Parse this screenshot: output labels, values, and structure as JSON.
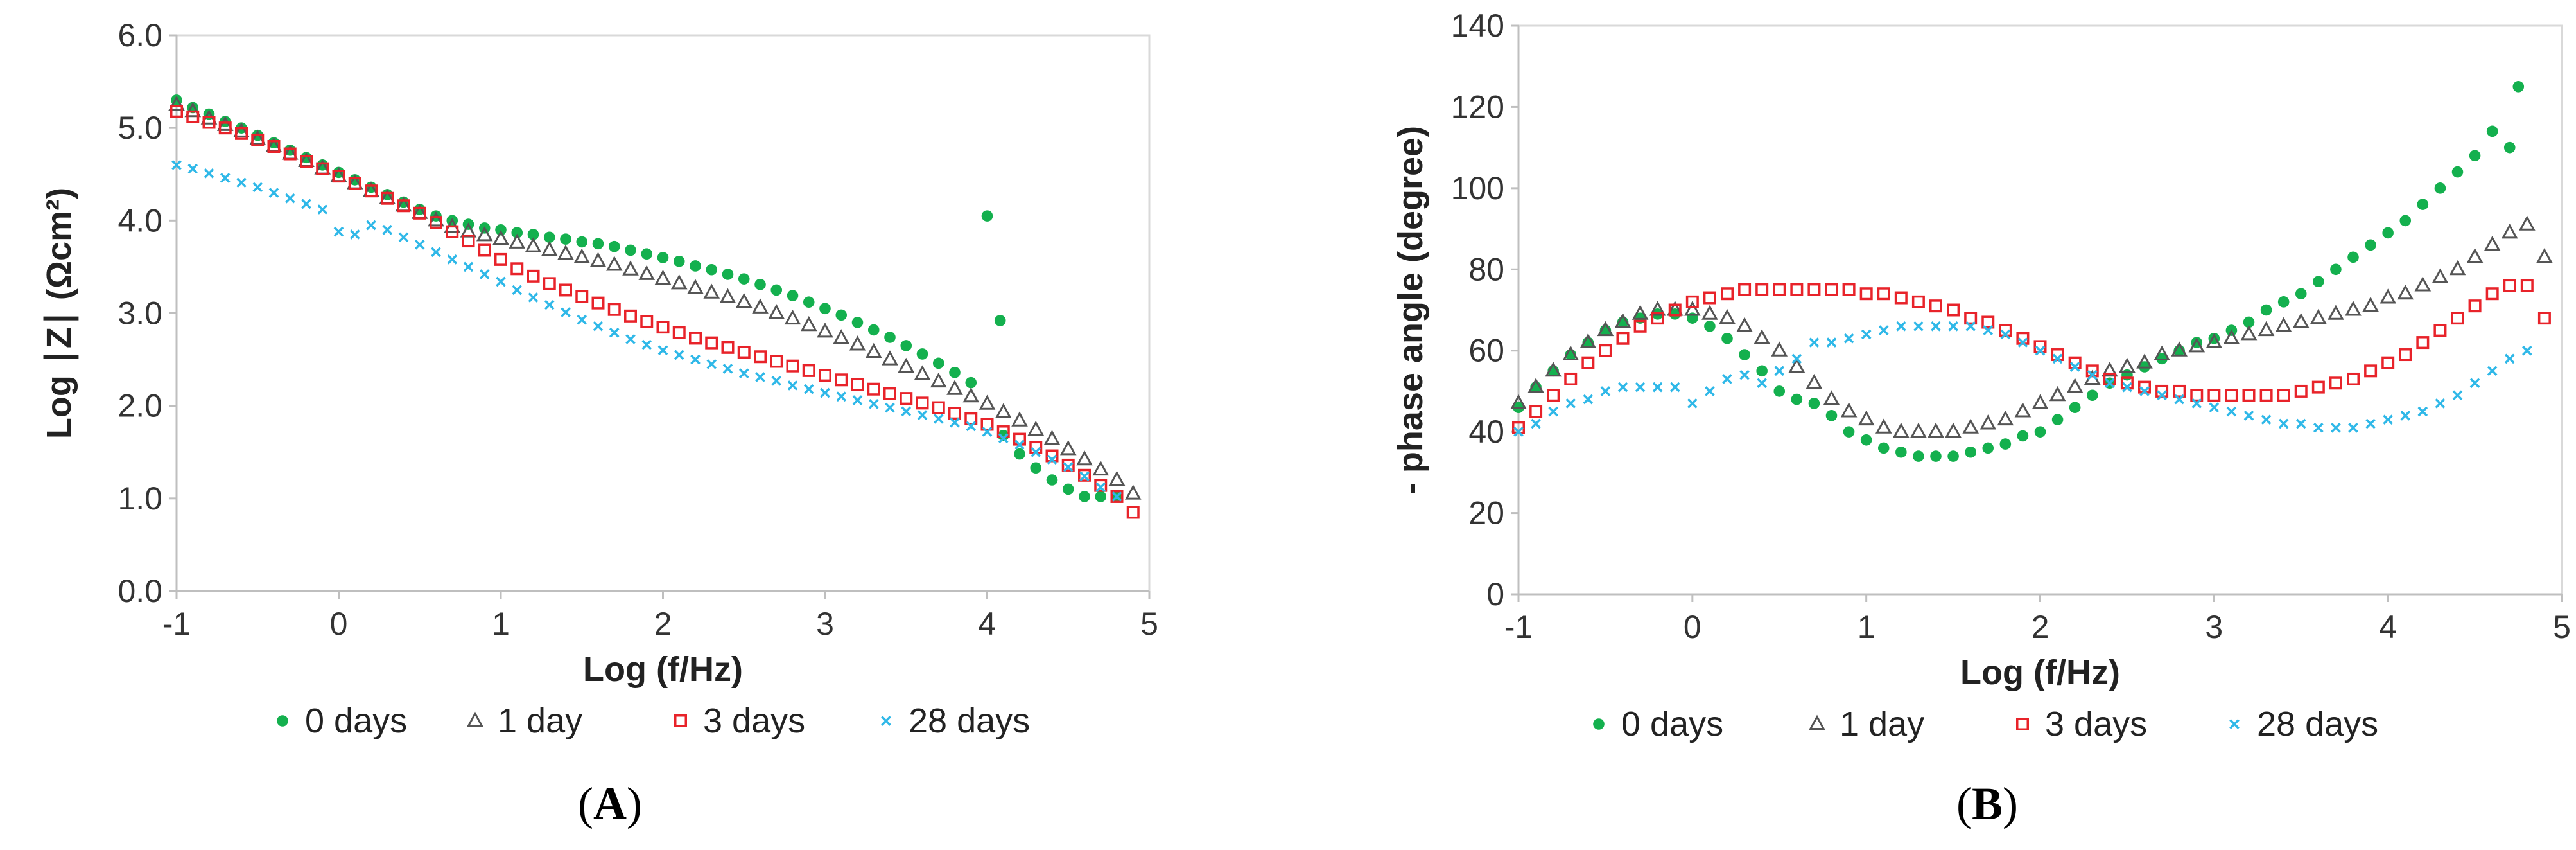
{
  "chart_data": [
    {
      "type": "scatter",
      "panel_label": "A",
      "xlabel": "Log (f/Hz)",
      "ylabel": "Log ∣Z∣ (Ωcm²)",
      "xlim": [
        -1,
        5
      ],
      "ylim": [
        0,
        6
      ],
      "x_ticks": [
        "-1",
        "0",
        "1",
        "2",
        "3",
        "4",
        "5"
      ],
      "y_ticks": [
        "0.0",
        "1.0",
        "2.0",
        "3.0",
        "4.0",
        "5.0",
        "6.0"
      ],
      "grid": false,
      "legend_position": "bottom",
      "series": [
        {
          "name": "0 days",
          "marker": "filled-circle",
          "color": "#14b04e",
          "x": [
            -1,
            -0.9,
            -0.8,
            -0.7,
            -0.6,
            -0.5,
            -0.4,
            -0.3,
            -0.2,
            -0.1,
            0,
            0.1,
            0.2,
            0.3,
            0.4,
            0.5,
            0.6,
            0.7,
            0.8,
            0.9,
            1.0,
            1.1,
            1.2,
            1.3,
            1.4,
            1.5,
            1.6,
            1.7,
            1.8,
            1.9,
            2.0,
            2.1,
            2.2,
            2.3,
            2.4,
            2.5,
            2.6,
            2.7,
            2.8,
            2.9,
            3.0,
            3.1,
            3.2,
            3.3,
            3.4,
            3.5,
            3.6,
            3.7,
            3.8,
            3.9,
            4.0,
            4.08,
            4.1,
            4.2,
            4.3,
            4.4,
            4.5,
            4.6,
            4.7,
            4.8
          ],
          "y": [
            5.3,
            5.22,
            5.15,
            5.07,
            5.0,
            4.92,
            4.84,
            4.76,
            4.68,
            4.6,
            4.52,
            4.44,
            4.36,
            4.28,
            4.2,
            4.12,
            4.05,
            4.0,
            3.96,
            3.92,
            3.9,
            3.87,
            3.85,
            3.82,
            3.8,
            3.77,
            3.75,
            3.72,
            3.68,
            3.64,
            3.6,
            3.56,
            3.51,
            3.47,
            3.42,
            3.37,
            3.31,
            3.25,
            3.19,
            3.12,
            3.05,
            2.98,
            2.9,
            2.82,
            2.74,
            2.65,
            2.56,
            2.46,
            2.36,
            2.25,
            4.05,
            2.92,
            1.68,
            1.48,
            1.33,
            1.2,
            1.1,
            1.02,
            1.02,
            1.02
          ]
        },
        {
          "name": "1 day",
          "marker": "open-triangle",
          "color": "#555555",
          "x": [
            -1,
            -0.9,
            -0.8,
            -0.7,
            -0.6,
            -0.5,
            -0.4,
            -0.3,
            -0.2,
            -0.1,
            0,
            0.1,
            0.2,
            0.3,
            0.4,
            0.5,
            0.6,
            0.7,
            0.8,
            0.9,
            1.0,
            1.1,
            1.2,
            1.3,
            1.4,
            1.5,
            1.6,
            1.7,
            1.8,
            1.9,
            2.0,
            2.1,
            2.2,
            2.3,
            2.4,
            2.5,
            2.6,
            2.7,
            2.8,
            2.9,
            3.0,
            3.1,
            3.2,
            3.3,
            3.4,
            3.5,
            3.6,
            3.7,
            3.8,
            3.9,
            4.0,
            4.1,
            4.2,
            4.3,
            4.4,
            4.5,
            4.6,
            4.7,
            4.8,
            4.9
          ],
          "y": [
            5.25,
            5.18,
            5.1,
            5.03,
            4.96,
            4.88,
            4.8,
            4.72,
            4.64,
            4.56,
            4.48,
            4.4,
            4.32,
            4.24,
            4.16,
            4.08,
            4.0,
            3.93,
            3.88,
            3.84,
            3.8,
            3.76,
            3.72,
            3.68,
            3.64,
            3.6,
            3.56,
            3.52,
            3.47,
            3.42,
            3.37,
            3.32,
            3.27,
            3.22,
            3.17,
            3.12,
            3.06,
            3.0,
            2.94,
            2.87,
            2.8,
            2.73,
            2.66,
            2.58,
            2.5,
            2.42,
            2.34,
            2.26,
            2.18,
            2.1,
            2.02,
            1.93,
            1.84,
            1.74,
            1.64,
            1.53,
            1.42,
            1.31,
            1.2,
            1.05
          ]
        },
        {
          "name": "3 days",
          "marker": "open-square",
          "color": "#e8232a",
          "x": [
            -1,
            -0.9,
            -0.8,
            -0.7,
            -0.6,
            -0.5,
            -0.4,
            -0.3,
            -0.2,
            -0.1,
            0,
            0.1,
            0.2,
            0.3,
            0.4,
            0.5,
            0.6,
            0.7,
            0.8,
            0.9,
            1.0,
            1.1,
            1.2,
            1.3,
            1.4,
            1.5,
            1.6,
            1.7,
            1.8,
            1.9,
            2.0,
            2.1,
            2.2,
            2.3,
            2.4,
            2.5,
            2.6,
            2.7,
            2.8,
            2.9,
            3.0,
            3.1,
            3.2,
            3.3,
            3.4,
            3.5,
            3.6,
            3.7,
            3.8,
            3.9,
            4.0,
            4.1,
            4.2,
            4.3,
            4.4,
            4.5,
            4.6,
            4.7,
            4.8,
            4.9
          ],
          "y": [
            5.18,
            5.12,
            5.06,
            5.0,
            4.94,
            4.87,
            4.8,
            4.72,
            4.64,
            4.56,
            4.48,
            4.4,
            4.32,
            4.24,
            4.16,
            4.08,
            3.98,
            3.88,
            3.78,
            3.68,
            3.58,
            3.48,
            3.4,
            3.32,
            3.25,
            3.18,
            3.11,
            3.04,
            2.97,
            2.91,
            2.85,
            2.79,
            2.73,
            2.68,
            2.63,
            2.58,
            2.53,
            2.48,
            2.43,
            2.38,
            2.33,
            2.28,
            2.23,
            2.18,
            2.13,
            2.08,
            2.03,
            1.98,
            1.92,
            1.86,
            1.8,
            1.72,
            1.64,
            1.55,
            1.46,
            1.36,
            1.25,
            1.14,
            1.02,
            0.85
          ]
        },
        {
          "name": "28 days",
          "marker": "cross",
          "color": "#2fb8e8",
          "x": [
            -1,
            -0.9,
            -0.8,
            -0.7,
            -0.6,
            -0.5,
            -0.4,
            -0.3,
            -0.2,
            -0.1,
            0,
            0.1,
            0.2,
            0.3,
            0.4,
            0.5,
            0.6,
            0.7,
            0.8,
            0.9,
            1.0,
            1.1,
            1.2,
            1.3,
            1.4,
            1.5,
            1.6,
            1.7,
            1.8,
            1.9,
            2.0,
            2.1,
            2.2,
            2.3,
            2.4,
            2.5,
            2.6,
            2.7,
            2.8,
            2.9,
            3.0,
            3.1,
            3.2,
            3.3,
            3.4,
            3.5,
            3.6,
            3.7,
            3.8,
            3.9,
            4.0,
            4.1,
            4.2,
            4.3,
            4.4,
            4.5,
            4.6,
            4.7,
            4.8
          ],
          "y": [
            4.6,
            4.56,
            4.51,
            4.46,
            4.41,
            4.36,
            4.3,
            4.24,
            4.18,
            4.12,
            3.88,
            3.85,
            3.95,
            3.9,
            3.82,
            3.74,
            3.66,
            3.58,
            3.5,
            3.42,
            3.34,
            3.25,
            3.17,
            3.09,
            3.01,
            2.93,
            2.86,
            2.79,
            2.72,
            2.66,
            2.6,
            2.55,
            2.5,
            2.45,
            2.4,
            2.35,
            2.31,
            2.27,
            2.22,
            2.18,
            2.14,
            2.1,
            2.06,
            2.02,
            1.98,
            1.94,
            1.9,
            1.86,
            1.82,
            1.78,
            1.72,
            1.65,
            1.58,
            1.5,
            1.42,
            1.34,
            1.24,
            1.12,
            1.02
          ]
        }
      ]
    },
    {
      "type": "scatter",
      "panel_label": "B",
      "xlabel": "Log (f/Hz)",
      "ylabel": "- phase angle (degree)",
      "xlim": [
        -1,
        5
      ],
      "ylim": [
        0,
        140
      ],
      "x_ticks": [
        "-1",
        "0",
        "1",
        "2",
        "3",
        "4",
        "5"
      ],
      "y_ticks": [
        "0",
        "20",
        "40",
        "60",
        "80",
        "100",
        "120",
        "140"
      ],
      "grid": false,
      "legend_position": "bottom",
      "series": [
        {
          "name": "0 days",
          "marker": "filled-circle",
          "color": "#14b04e",
          "x": [
            -1,
            -0.9,
            -0.8,
            -0.7,
            -0.6,
            -0.5,
            -0.4,
            -0.3,
            -0.2,
            -0.1,
            0,
            0.1,
            0.2,
            0.3,
            0.4,
            0.5,
            0.6,
            0.7,
            0.8,
            0.9,
            1.0,
            1.1,
            1.2,
            1.3,
            1.4,
            1.5,
            1.6,
            1.7,
            1.8,
            1.9,
            2.0,
            2.1,
            2.2,
            2.3,
            2.4,
            2.5,
            2.6,
            2.7,
            2.8,
            2.9,
            3.0,
            3.1,
            3.2,
            3.3,
            3.4,
            3.5,
            3.6,
            3.7,
            3.8,
            3.9,
            4.0,
            4.1,
            4.2,
            4.3,
            4.4,
            4.5,
            4.6,
            4.7,
            4.75
          ],
          "y": [
            46,
            51,
            55,
            59,
            62,
            65,
            67,
            68,
            69,
            69,
            68,
            66,
            63,
            59,
            55,
            50,
            48,
            47,
            44,
            40,
            38,
            36,
            35,
            34,
            34,
            34,
            35,
            36,
            37,
            39,
            40,
            43,
            46,
            49,
            52,
            54,
            56,
            58,
            60,
            62,
            63,
            65,
            67,
            70,
            72,
            74,
            77,
            80,
            83,
            86,
            89,
            92,
            96,
            100,
            104,
            108,
            114,
            110,
            125
          ]
        },
        {
          "name": "1 day",
          "marker": "open-triangle",
          "color": "#555555",
          "x": [
            -1,
            -0.9,
            -0.8,
            -0.7,
            -0.6,
            -0.5,
            -0.4,
            -0.3,
            -0.2,
            -0.1,
            0,
            0.1,
            0.2,
            0.3,
            0.4,
            0.5,
            0.6,
            0.7,
            0.8,
            0.9,
            1.0,
            1.1,
            1.2,
            1.3,
            1.4,
            1.5,
            1.6,
            1.7,
            1.8,
            1.9,
            2.0,
            2.1,
            2.2,
            2.3,
            2.4,
            2.5,
            2.6,
            2.7,
            2.8,
            2.9,
            3.0,
            3.1,
            3.2,
            3.3,
            3.4,
            3.5,
            3.6,
            3.7,
            3.8,
            3.9,
            4.0,
            4.1,
            4.2,
            4.3,
            4.4,
            4.5,
            4.6,
            4.7,
            4.8,
            4.9
          ],
          "y": [
            47,
            51,
            55,
            59,
            62,
            65,
            67,
            69,
            70,
            70,
            70,
            69,
            68,
            66,
            63,
            60,
            56,
            52,
            48,
            45,
            43,
            41,
            40,
            40,
            40,
            40,
            41,
            42,
            43,
            45,
            47,
            49,
            51,
            53,
            55,
            56,
            57,
            59,
            60,
            61,
            62,
            63,
            64,
            65,
            66,
            67,
            68,
            69,
            70,
            71,
            73,
            74,
            76,
            78,
            80,
            83,
            86,
            89,
            91,
            83
          ]
        },
        {
          "name": "3 days",
          "marker": "open-square",
          "color": "#e8232a",
          "x": [
            -1,
            -0.9,
            -0.8,
            -0.7,
            -0.6,
            -0.5,
            -0.4,
            -0.3,
            -0.2,
            -0.1,
            0,
            0.1,
            0.2,
            0.3,
            0.4,
            0.5,
            0.6,
            0.7,
            0.8,
            0.9,
            1.0,
            1.1,
            1.2,
            1.3,
            1.4,
            1.5,
            1.6,
            1.7,
            1.8,
            1.9,
            2.0,
            2.1,
            2.2,
            2.3,
            2.4,
            2.5,
            2.6,
            2.7,
            2.8,
            2.9,
            3.0,
            3.1,
            3.2,
            3.3,
            3.4,
            3.5,
            3.6,
            3.7,
            3.8,
            3.9,
            4.0,
            4.1,
            4.2,
            4.3,
            4.4,
            4.5,
            4.6,
            4.7,
            4.8,
            4.9
          ],
          "y": [
            41,
            45,
            49,
            53,
            57,
            60,
            63,
            66,
            68,
            70,
            72,
            73,
            74,
            75,
            75,
            75,
            75,
            75,
            75,
            75,
            74,
            74,
            73,
            72,
            71,
            70,
            68,
            67,
            65,
            63,
            61,
            59,
            57,
            55,
            53,
            52,
            51,
            50,
            50,
            49,
            49,
            49,
            49,
            49,
            49,
            50,
            51,
            52,
            53,
            55,
            57,
            59,
            62,
            65,
            68,
            71,
            74,
            76,
            76,
            68
          ]
        },
        {
          "name": "28 days",
          "marker": "cross",
          "color": "#2fb8e8",
          "x": [
            -1,
            -0.9,
            -0.8,
            -0.7,
            -0.6,
            -0.5,
            -0.4,
            -0.3,
            -0.2,
            -0.1,
            0,
            0.1,
            0.2,
            0.3,
            0.4,
            0.5,
            0.6,
            0.7,
            0.8,
            0.9,
            1.0,
            1.1,
            1.2,
            1.3,
            1.4,
            1.5,
            1.6,
            1.7,
            1.8,
            1.9,
            2.0,
            2.1,
            2.2,
            2.3,
            2.4,
            2.5,
            2.6,
            2.7,
            2.8,
            2.9,
            3.0,
            3.1,
            3.2,
            3.3,
            3.4,
            3.5,
            3.6,
            3.7,
            3.8,
            3.9,
            4.0,
            4.1,
            4.2,
            4.3,
            4.4,
            4.5,
            4.6,
            4.7,
            4.8
          ],
          "y": [
            40,
            42,
            45,
            47,
            48,
            50,
            51,
            51,
            51,
            51,
            47,
            50,
            53,
            54,
            52,
            55,
            58,
            62,
            62,
            63,
            64,
            65,
            66,
            66,
            66,
            66,
            66,
            65,
            64,
            62,
            60,
            58,
            56,
            54,
            52,
            51,
            50,
            49,
            48,
            47,
            46,
            45,
            44,
            43,
            42,
            42,
            41,
            41,
            41,
            42,
            43,
            44,
            45,
            47,
            49,
            52,
            55,
            58,
            60
          ]
        }
      ]
    }
  ]
}
